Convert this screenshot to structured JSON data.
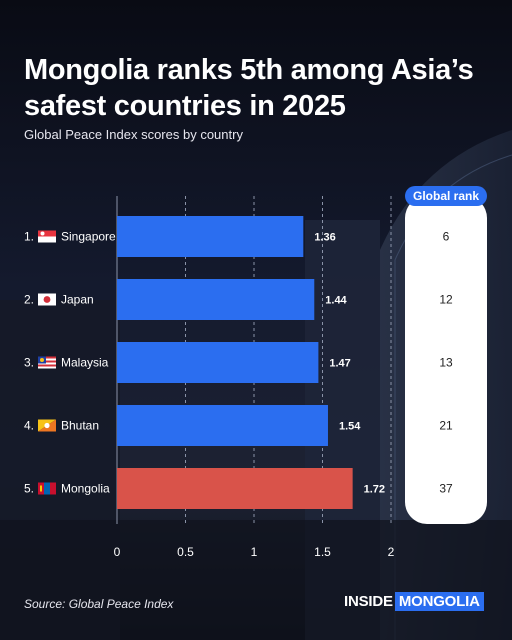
{
  "header": {
    "title": "Mongolia ranks 5th among Asia’s safest countries in 2025",
    "subtitle": "Global Peace Index scores by country"
  },
  "rank_header": "Global rank",
  "footer": {
    "source": "Source: Global Peace Index",
    "brand_part1": "INSIDE",
    "brand_part2": "MONGOLIA"
  },
  "colors": {
    "bar": "#2b6ef0",
    "highlight": "#d9534a",
    "rank_pill": "#ffffff",
    "brand_accent": "#2b6ef0"
  },
  "chart_data": {
    "type": "bar",
    "orientation": "horizontal",
    "title": "Mongolia ranks 5th among Asia’s safest countries in 2025",
    "subtitle": "Global Peace Index scores by country",
    "xlabel": "",
    "ylabel": "",
    "xlim": [
      0,
      2
    ],
    "xticks": [
      "0",
      "0.5",
      "1",
      "1.5",
      "2"
    ],
    "xtick_values": [
      0,
      0.5,
      1,
      1.5,
      2
    ],
    "grid": "vertical dashed",
    "legend": "none",
    "categories": [
      "Singapore",
      "Japan",
      "Malaysia",
      "Bhutan",
      "Mongolia"
    ],
    "positions": [
      "1.",
      "2.",
      "3.",
      "4.",
      "5."
    ],
    "flags": [
      "singapore-flag-icon",
      "japan-flag-icon",
      "malaysia-flag-icon",
      "bhutan-flag-icon",
      "mongolia-flag-icon"
    ],
    "values": [
      1.36,
      1.44,
      1.47,
      1.54,
      1.72
    ],
    "value_labels": [
      "1.36",
      "1.44",
      "1.47",
      "1.54",
      "1.72"
    ],
    "global_rank": [
      "6",
      "12",
      "13",
      "21",
      "37"
    ],
    "highlight_index": 4
  }
}
